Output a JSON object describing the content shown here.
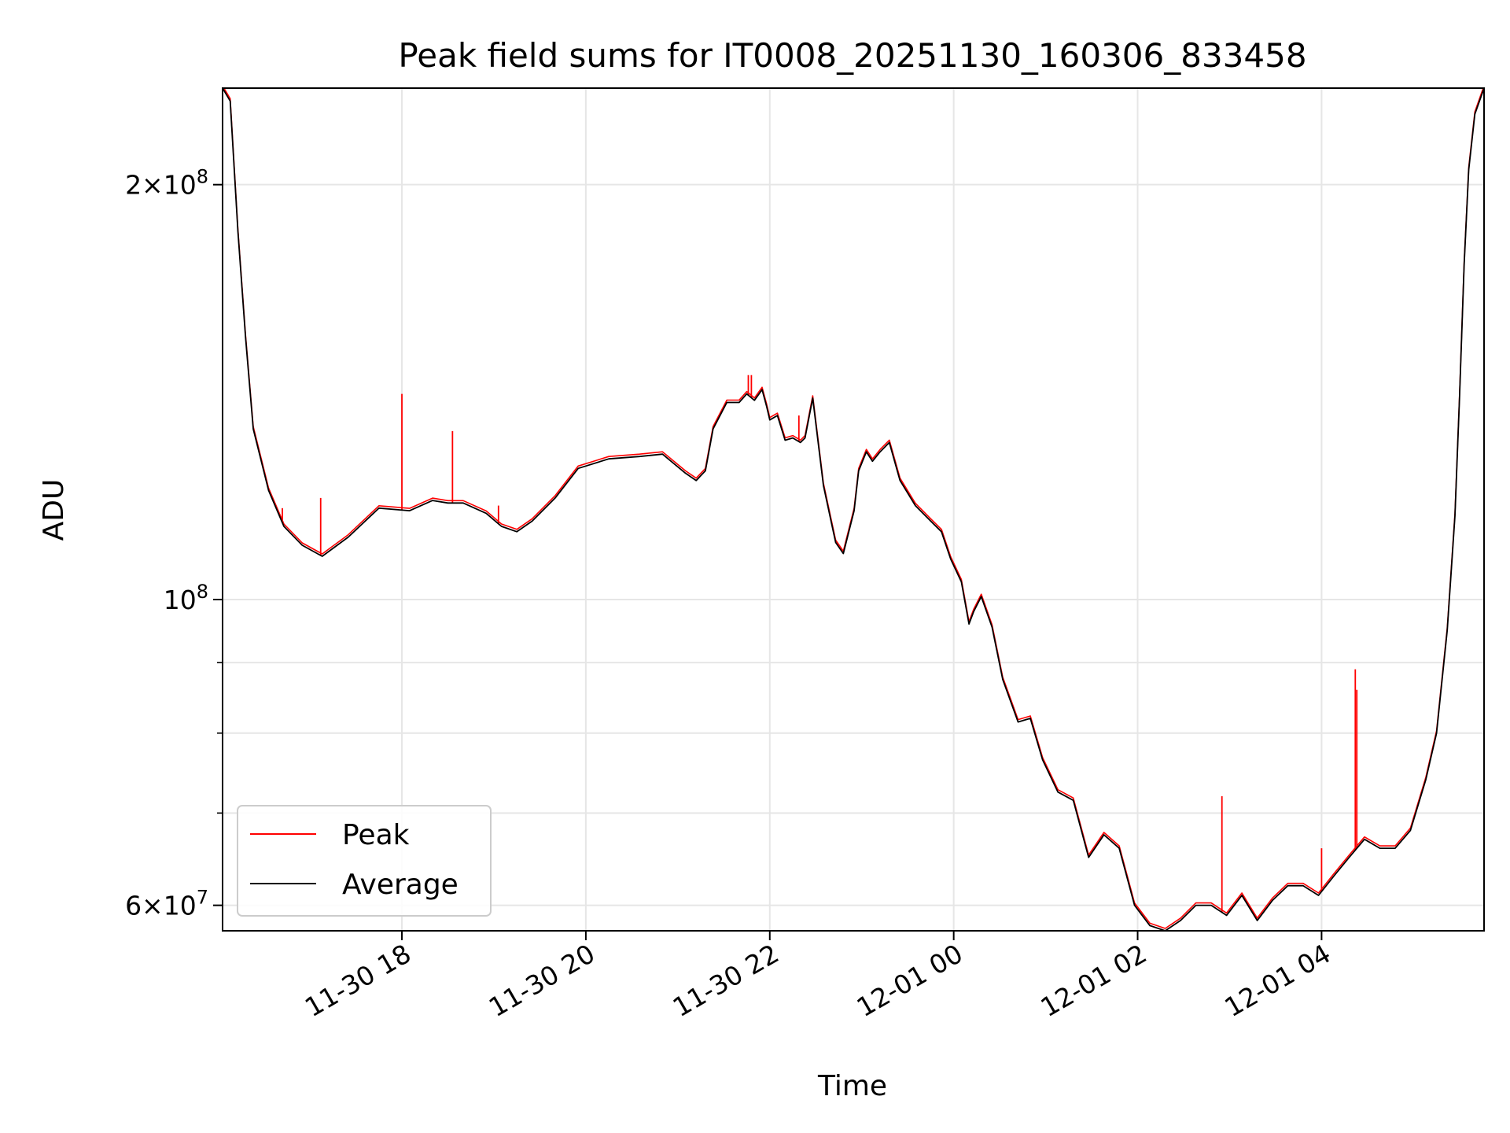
{
  "chart_data": {
    "type": "line",
    "title": "Peak field sums for IT0008_20251130_160306_833458",
    "xlabel": "Time",
    "ylabel": "ADU",
    "yscale": "log",
    "xlim": [
      "2025-11-30 16:03",
      "2025-12-01 05:46"
    ],
    "ylim": [
      57500000,
      235000000
    ],
    "grid": true,
    "legend_position": "lower-left",
    "x_ticks": [
      {
        "x": "2025-11-30 18:00",
        "label": "11-30 18"
      },
      {
        "x": "2025-11-30 20:00",
        "label": "11-30 20"
      },
      {
        "x": "2025-11-30 22:00",
        "label": "11-30 22"
      },
      {
        "x": "2025-12-01 00:00",
        "label": "12-01 00"
      },
      {
        "x": "2025-12-01 02:00",
        "label": "12-01 02"
      },
      {
        "x": "2025-12-01 04:00",
        "label": "12-01 04"
      }
    ],
    "y_ticks": [
      {
        "y": 60000000,
        "mantissa": "6",
        "base": "10",
        "exp": "7"
      },
      {
        "y": 100000000,
        "mantissa": "",
        "base": "10",
        "exp": "8"
      },
      {
        "y": 200000000,
        "mantissa": "2",
        "base": "10",
        "exp": "8"
      }
    ],
    "y_minor_ticks": [
      70000000,
      80000000,
      90000000
    ],
    "series": [
      {
        "name": "Peak",
        "color": "#ff0000",
        "spikes": [
          {
            "x": "2025-11-30 16:42",
            "y": 116500000
          },
          {
            "x": "2025-11-30 17:07",
            "y": 118500000
          },
          {
            "x": "2025-11-30 18:00",
            "y": 141000000
          },
          {
            "x": "2025-11-30 18:33",
            "y": 132500000
          },
          {
            "x": "2025-11-30 19:03",
            "y": 117000000
          },
          {
            "x": "2025-11-30 21:46",
            "y": 145500000
          },
          {
            "x": "2025-11-30 21:48",
            "y": 145500000
          },
          {
            "x": "2025-11-30 22:19",
            "y": 136000000
          },
          {
            "x": "2025-12-01 02:55",
            "y": 72000000
          },
          {
            "x": "2025-12-01 04:00",
            "y": 66000000
          },
          {
            "x": "2025-12-01 04:22",
            "y": 89000000
          },
          {
            "x": "2025-12-01 04:23",
            "y": 86000000
          }
        ]
      },
      {
        "name": "Average",
        "color": "#000000",
        "x": [
          "2025-11-30 16:03",
          "2025-11-30 16:08",
          "2025-11-30 16:13",
          "2025-11-30 16:18",
          "2025-11-30 16:23",
          "2025-11-30 16:33",
          "2025-11-30 16:43",
          "2025-11-30 16:55",
          "2025-11-30 17:08",
          "2025-11-30 17:25",
          "2025-11-30 17:45",
          "2025-11-30 18:05",
          "2025-11-30 18:20",
          "2025-11-30 18:30",
          "2025-11-30 18:40",
          "2025-11-30 18:55",
          "2025-11-30 19:05",
          "2025-11-30 19:15",
          "2025-11-30 19:25",
          "2025-11-30 19:40",
          "2025-11-30 19:55",
          "2025-11-30 20:15",
          "2025-11-30 20:35",
          "2025-11-30 20:50",
          "2025-11-30 21:05",
          "2025-11-30 21:12",
          "2025-11-30 21:18",
          "2025-11-30 21:23",
          "2025-11-30 21:32",
          "2025-11-30 21:40",
          "2025-11-30 21:45",
          "2025-11-30 21:50",
          "2025-11-30 21:55",
          "2025-11-30 21:58",
          "2025-11-30 22:00",
          "2025-11-30 22:05",
          "2025-11-30 22:10",
          "2025-11-30 22:15",
          "2025-11-30 22:20",
          "2025-11-30 22:23",
          "2025-11-30 22:28",
          "2025-11-30 22:35",
          "2025-11-30 22:40",
          "2025-11-30 22:43",
          "2025-11-30 22:48",
          "2025-11-30 22:55",
          "2025-11-30 22:58",
          "2025-11-30 23:03",
          "2025-11-30 23:07",
          "2025-11-30 23:12",
          "2025-11-30 23:18",
          "2025-11-30 23:25",
          "2025-11-30 23:35",
          "2025-11-30 23:45",
          "2025-11-30 23:52",
          "2025-11-30 23:58",
          "2025-12-01 00:05",
          "2025-12-01 00:10",
          "2025-12-01 00:13",
          "2025-12-01 00:18",
          "2025-12-01 00:25",
          "2025-12-01 00:32",
          "2025-12-01 00:42",
          "2025-12-01 00:50",
          "2025-12-01 00:58",
          "2025-12-01 01:08",
          "2025-12-01 01:18",
          "2025-12-01 01:28",
          "2025-12-01 01:38",
          "2025-12-01 01:48",
          "2025-12-01 01:58",
          "2025-12-01 02:08",
          "2025-12-01 02:18",
          "2025-12-01 02:28",
          "2025-12-01 02:38",
          "2025-12-01 02:48",
          "2025-12-01 02:58",
          "2025-12-01 03:08",
          "2025-12-01 03:18",
          "2025-12-01 03:28",
          "2025-12-01 03:38",
          "2025-12-01 03:48",
          "2025-12-01 03:58",
          "2025-12-01 04:08",
          "2025-12-01 04:18",
          "2025-12-01 04:28",
          "2025-12-01 04:38",
          "2025-12-01 04:48",
          "2025-12-01 04:58",
          "2025-12-01 05:08",
          "2025-12-01 05:15",
          "2025-12-01 05:22",
          "2025-12-01 05:27",
          "2025-12-01 05:30",
          "2025-12-01 05:33",
          "2025-12-01 05:36",
          "2025-12-01 05:40",
          "2025-12-01 05:46"
        ],
        "values": [
          235000000,
          230000000,
          185000000,
          155000000,
          133000000,
          120000000,
          113000000,
          109500000,
          107500000,
          111000000,
          116500000,
          116000000,
          118000000,
          117500000,
          117500000,
          115500000,
          113000000,
          112000000,
          114000000,
          118500000,
          124500000,
          126500000,
          127000000,
          127500000,
          123500000,
          122000000,
          124000000,
          133000000,
          139000000,
          139000000,
          141000000,
          139500000,
          142000000,
          138000000,
          135000000,
          136000000,
          130500000,
          131000000,
          130000000,
          131000000,
          140000000,
          121000000,
          114000000,
          110000000,
          108000000,
          116000000,
          124000000,
          128000000,
          126000000,
          128000000,
          130000000,
          122000000,
          117000000,
          114000000,
          112000000,
          107000000,
          103000000,
          96000000,
          98000000,
          100500000,
          95500000,
          87500000,
          81500000,
          82000000,
          76500000,
          72500000,
          71500000,
          65000000,
          67500000,
          66000000,
          60000000,
          58000000,
          57500000,
          58500000,
          60000000,
          60000000,
          59000000,
          61000000,
          58500000,
          60500000,
          62000000,
          62000000,
          61000000,
          63000000,
          65000000,
          67000000,
          66000000,
          66000000,
          68000000,
          74000000,
          80000000,
          95000000,
          115000000,
          140000000,
          175000000,
          205000000,
          225000000,
          235000000
        ]
      }
    ]
  }
}
